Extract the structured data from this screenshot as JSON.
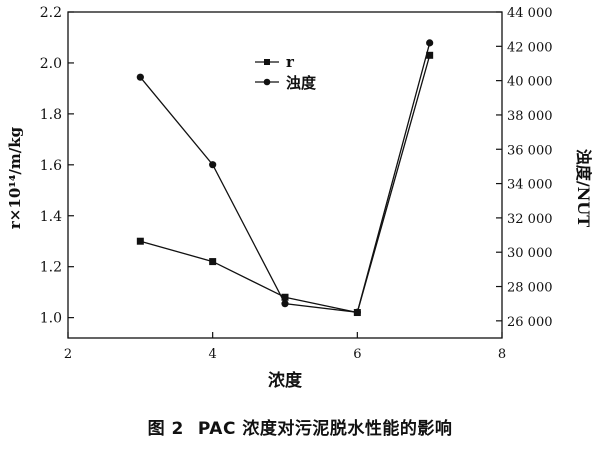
{
  "chart_data": {
    "type": "line",
    "x_axis": {
      "label": "浓度",
      "range": [
        2,
        8
      ],
      "ticks": [
        "2",
        "4",
        "6",
        "8"
      ]
    },
    "y_left": {
      "label": "r×10¹⁴/m/kg",
      "range": [
        0.92,
        2.2
      ],
      "ticks": [
        "1.0",
        "1.2",
        "1.4",
        "1.6",
        "1.8",
        "2.0",
        "2.2"
      ]
    },
    "y_right": {
      "label": "浊度/NUT",
      "range": [
        25000,
        44000
      ],
      "ticks": [
        "26 000",
        "28 000",
        "30 000",
        "32 000",
        "34 000",
        "36 000",
        "38 000",
        "40 000",
        "42 000",
        "44 000"
      ]
    },
    "legend_position": "top-center",
    "series": [
      {
        "name": "r",
        "axis": "left",
        "marker": "square",
        "x": [
          3,
          4,
          5,
          6,
          7
        ],
        "y": [
          1.3,
          1.22,
          1.08,
          1.02,
          2.03
        ]
      },
      {
        "name": "浊度",
        "axis": "right",
        "marker": "circle",
        "x": [
          3,
          4,
          5,
          6,
          7
        ],
        "y": [
          40200,
          35100,
          27000,
          26500,
          42200
        ]
      }
    ]
  },
  "caption": {
    "figure_number": "图 2",
    "text": "PAC 浓度对污泥脱水性能的影响"
  },
  "colors": {
    "ink": "#111111",
    "background": "#ffffff"
  }
}
